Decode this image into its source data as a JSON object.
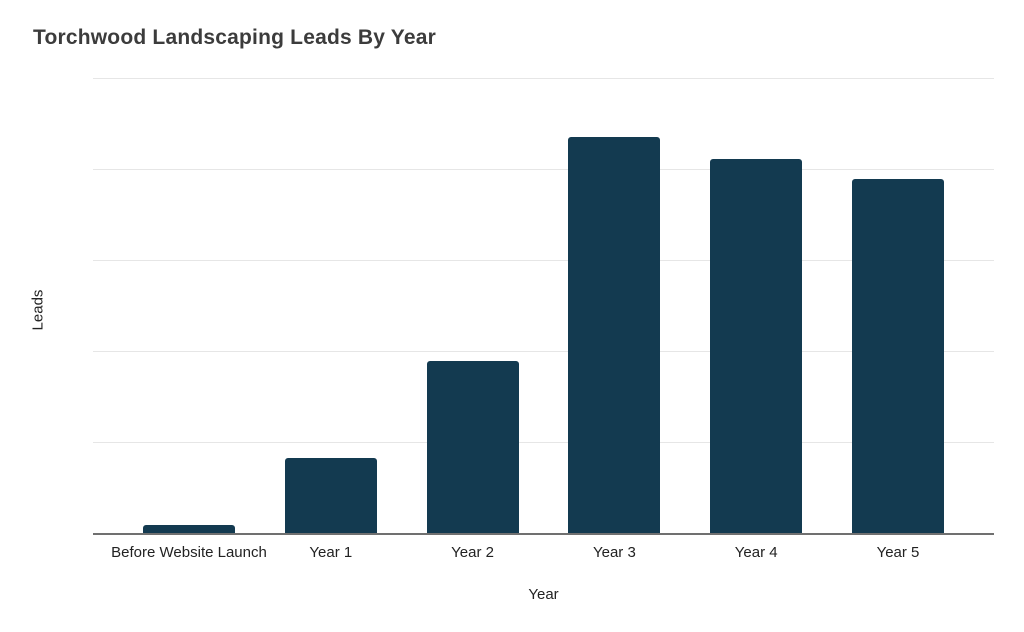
{
  "page": {
    "background_color": "#ffffff"
  },
  "chart_data": {
    "type": "bar",
    "title": "Torchwood Landscaping Leads By Year",
    "xlabel": "Year",
    "ylabel": "Leads",
    "categories": [
      "Before Website Launch",
      "Year 1",
      "Year 2",
      "Year 3",
      "Year 4",
      "Year 5"
    ],
    "values": [
      1.8,
      16.5,
      37.8,
      87.0,
      82.2,
      77.8
    ],
    "ylim": [
      0,
      100
    ],
    "y_axis_ticks": "unlabeled (values estimated as percent of axis height from gridlines)",
    "grid": "on",
    "gridline_count": 5,
    "legend": "none",
    "colors": {
      "bar": "#133a50",
      "gridline": "#e6e6e6",
      "axis_line": "#707070",
      "title_text": "#3c3c3c",
      "label_text": "#222222"
    }
  }
}
